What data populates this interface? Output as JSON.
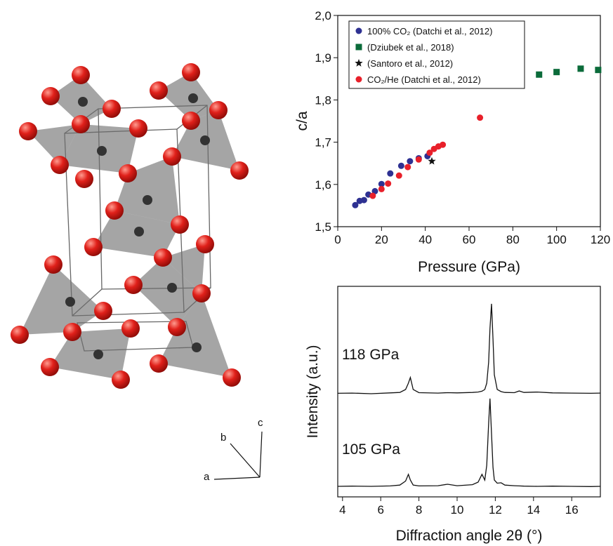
{
  "chart_data": [
    {
      "type": "scatter",
      "xlabel": "Pressure (GPa)",
      "ylabel": "c/a",
      "xlim": [
        0,
        120
      ],
      "xticks": [
        0,
        20,
        40,
        60,
        80,
        100,
        120
      ],
      "ylim": [
        1.5,
        2.0
      ],
      "yticks": [
        {
          "value": 1.5,
          "label": "1,5"
        },
        {
          "value": 1.6,
          "label": "1,6"
        },
        {
          "value": 1.7,
          "label": "1,7"
        },
        {
          "value": 1.8,
          "label": "1,8"
        },
        {
          "value": 1.9,
          "label": "1,9"
        },
        {
          "value": 2.0,
          "label": "2,0"
        }
      ],
      "legend": "upper left",
      "series": [
        {
          "name": "100% CO₂ (Datchi et al., 2012)",
          "color": "#2e3192",
          "marker": "circle",
          "x": [
            8,
            10,
            12,
            14,
            17,
            20,
            24,
            29,
            33,
            37,
            41
          ],
          "values": [
            1.551,
            1.561,
            1.563,
            1.576,
            1.584,
            1.601,
            1.626,
            1.644,
            1.655,
            1.662,
            1.667
          ]
        },
        {
          "name": "(Dziubek et al., 2018)",
          "color": "#0b6b3a",
          "marker": "square",
          "x": [
            92,
            100,
            111,
            119
          ],
          "values": [
            1.86,
            1.866,
            1.874,
            1.871
          ]
        },
        {
          "name": "(Santoro et al., 2012)",
          "color": "#111111",
          "marker": "star",
          "x": [
            43
          ],
          "values": [
            1.655
          ]
        },
        {
          "name": "CO₂/He (Datchi et al., 2012)",
          "color": "#e8202a",
          "marker": "circle",
          "x": [
            16,
            20,
            23,
            28,
            32,
            37,
            42,
            44,
            46,
            48,
            65
          ],
          "values": [
            1.573,
            1.589,
            1.602,
            1.621,
            1.641,
            1.659,
            1.675,
            1.684,
            1.69,
            1.694,
            1.758
          ]
        }
      ]
    },
    {
      "type": "line",
      "xlabel": "Diffraction angle 2θ (°)",
      "ylabel": "Intensity (a.u.)",
      "xlim": [
        3.75,
        17.5
      ],
      "xticks": [
        4,
        6,
        8,
        10,
        12,
        14,
        16
      ],
      "ylim": [
        0,
        100
      ],
      "annotations": [
        "118 GPa",
        "105 GPa"
      ],
      "x": [
        3.75,
        4.5,
        5.5,
        6.5,
        7.0,
        7.3,
        7.45,
        7.55,
        7.7,
        8.0,
        9.0,
        9.5,
        10.0,
        10.8,
        11.1,
        11.3,
        11.45,
        11.55,
        11.65,
        11.72,
        11.8,
        11.88,
        11.95,
        12.1,
        12.3,
        12.5,
        13.0,
        13.25,
        13.5,
        14.2,
        15.0,
        16.0,
        17.0,
        17.5
      ],
      "series": [
        {
          "color": "#111111",
          "values": [
            49.2,
            49.3,
            49.0,
            49.4,
            49.6,
            51,
            54,
            56.7,
            51,
            49.5,
            49.3,
            49.5,
            49.4,
            49.6,
            49.8,
            50.2,
            51,
            54,
            64,
            80,
            91.7,
            75,
            58,
            51,
            50,
            49.6,
            49.5,
            50.3,
            49.6,
            49.8,
            49.4,
            49.3,
            49.2,
            49.3
          ]
        },
        {
          "color": "#111111",
          "values": [
            5,
            5.1,
            5,
            5.2,
            5.6,
            7.5,
            10.7,
            8,
            5.6,
            5.2,
            5.3,
            6,
            5.3,
            5.8,
            7,
            10.7,
            8,
            15,
            35,
            46.7,
            30,
            14,
            8,
            6.5,
            6.7,
            5.6,
            5.3,
            5.2,
            5.1,
            5,
            5.1,
            5,
            4.9,
            5
          ]
        }
      ]
    }
  ],
  "structure": {
    "axes": [
      "a",
      "b",
      "c"
    ]
  }
}
